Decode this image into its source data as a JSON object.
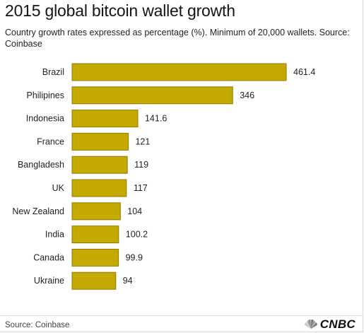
{
  "title": "2015 global bitcoin wallet growth",
  "subtitle": "Country growth rates expressed as percentage (%). Minimum of 20,000 wallets. Source: Coinbase",
  "footer": {
    "source": "Source: Coinbase",
    "logo_text": "CNBC"
  },
  "colors": {
    "bar_fill": "#c4aa00",
    "bar_stroke": "#8e7b00"
  },
  "chart_data": {
    "type": "bar",
    "orientation": "horizontal",
    "categories": [
      "Brazil",
      "Philipines",
      "Indonesia",
      "France",
      "Bangladesh",
      "UK",
      "New Zealand",
      "India",
      "Canada",
      "Ukraine"
    ],
    "values": [
      461.4,
      346,
      141.6,
      121,
      119,
      117,
      104,
      100.2,
      99.9,
      94
    ],
    "value_labels": [
      "461.4",
      "346",
      "141.6",
      "121",
      "119",
      "117",
      "104",
      "100.2",
      "99.9",
      "94"
    ],
    "title": "2015 global bitcoin wallet growth",
    "xlabel": "",
    "ylabel": "",
    "xlim": [
      0,
      461.4
    ],
    "grid": false,
    "legend": "none"
  }
}
